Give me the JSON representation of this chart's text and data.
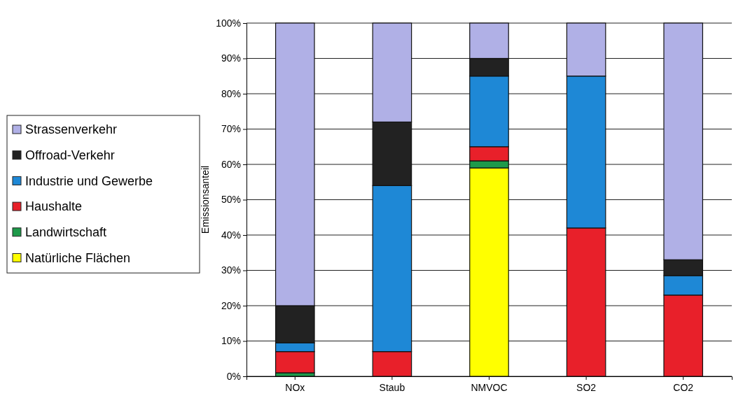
{
  "chart_data": {
    "type": "bar",
    "stacked": true,
    "ylabel": "Emissionsanteil",
    "categories": [
      "NOx",
      "Staub",
      "NMVOC",
      "SO2",
      "CO2"
    ],
    "series": [
      {
        "name": "Natürliche Flächen",
        "color": "#ffff00",
        "values": [
          0,
          0,
          59,
          0,
          0
        ]
      },
      {
        "name": "Landwirtschaft",
        "color": "#1e9a4a",
        "values": [
          1,
          0,
          2,
          0,
          0
        ]
      },
      {
        "name": "Haushalte",
        "color": "#e8202a",
        "values": [
          6,
          7,
          4,
          42,
          23
        ]
      },
      {
        "name": "Industrie und Gewerbe",
        "color": "#1e88d6",
        "values": [
          2.5,
          47,
          20,
          43,
          5.5
        ]
      },
      {
        "name": "Offroad-Verkehr",
        "color": "#222222",
        "values": [
          10.5,
          18,
          5,
          0,
          4.5
        ]
      },
      {
        "name": "Strassenverkehr",
        "color": "#b0b0e6",
        "values": [
          80,
          28,
          10,
          15,
          67
        ]
      }
    ],
    "ylim": [
      0,
      100
    ],
    "yticks": [
      {
        "value": 0,
        "label": "0%"
      },
      {
        "value": 10,
        "label": "10%"
      },
      {
        "value": 20,
        "label": "20%"
      },
      {
        "value": 30,
        "label": "30%"
      },
      {
        "value": 40,
        "label": "40%"
      },
      {
        "value": 50,
        "label": "50%"
      },
      {
        "value": 60,
        "label": "60%"
      },
      {
        "value": 70,
        "label": "70%"
      },
      {
        "value": 80,
        "label": "80%"
      },
      {
        "value": 90,
        "label": "90%"
      },
      {
        "value": 100,
        "label": "100%"
      }
    ],
    "grid": "y",
    "legend": "left"
  }
}
